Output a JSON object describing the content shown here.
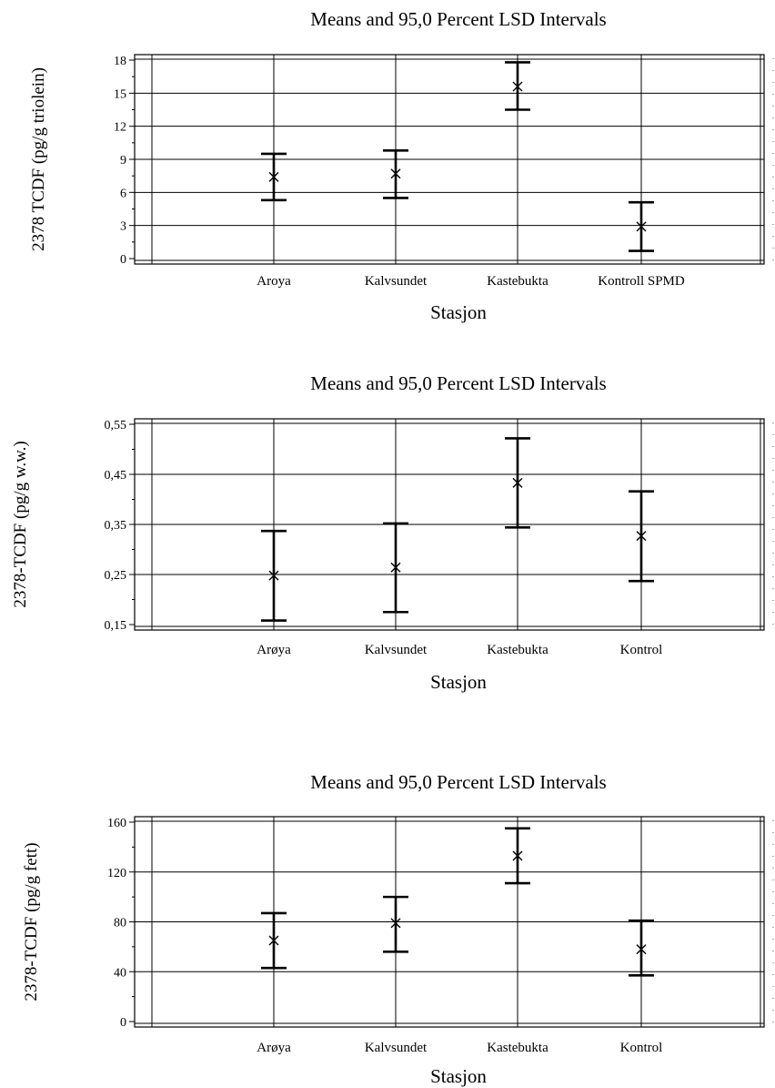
{
  "chart_data": [
    {
      "type": "errorbar",
      "title": "Means and 95,0 Percent LSD Intervals",
      "xlabel": "Stasjon",
      "ylabel": "2378 TCDF (pg/g triolein)",
      "ylim": [
        0,
        18
      ],
      "yticks": [
        0,
        3,
        6,
        9,
        12,
        15,
        18
      ],
      "ytick_labels": [
        "0",
        "3",
        "6",
        "9",
        "12",
        "15",
        "18"
      ],
      "grid": true,
      "categories": [
        "Aroya",
        "Kalvsundet",
        "Kastebukta",
        "Kontroll SPMD"
      ],
      "means": [
        7.4,
        7.7,
        15.6,
        2.9
      ],
      "lower": [
        5.3,
        5.5,
        13.5,
        0.7
      ],
      "upper": [
        9.5,
        9.8,
        17.8,
        5.1
      ]
    },
    {
      "type": "errorbar",
      "title": "Means and 95,0 Percent LSD Intervals",
      "xlabel": "Stasjon",
      "ylabel": "2378-TCDF (pg/g w.w.)",
      "ylim": [
        0.15,
        0.55
      ],
      "yticks": [
        0.15,
        0.25,
        0.35,
        0.45,
        0.55
      ],
      "ytick_labels": [
        "0,15",
        "0,25",
        "0,35",
        "0,45",
        "0,55"
      ],
      "grid": true,
      "categories": [
        "Arøya",
        "Kalvsundet",
        "Kastebukta",
        "Kontrol"
      ],
      "means": [
        0.248,
        0.264,
        0.433,
        0.327
      ],
      "lower": [
        0.158,
        0.175,
        0.344,
        0.237
      ],
      "upper": [
        0.337,
        0.352,
        0.522,
        0.416
      ]
    },
    {
      "type": "errorbar",
      "title": "Means and 95,0 Percent LSD Intervals",
      "xlabel": "Stasjon",
      "ylabel": "2378-TCDF (pg/g fett)",
      "ylim": [
        0,
        160
      ],
      "yticks": [
        0,
        40,
        80,
        120,
        160
      ],
      "ytick_labels": [
        "0",
        "40",
        "80",
        "120",
        "160"
      ],
      "grid": true,
      "categories": [
        "Arøya",
        "Kalvsundet",
        "Kastebukta",
        "Kontrol"
      ],
      "means": [
        65,
        79,
        133,
        58
      ],
      "lower": [
        43,
        56,
        111,
        37
      ],
      "upper": [
        87,
        100,
        155,
        81
      ]
    }
  ]
}
